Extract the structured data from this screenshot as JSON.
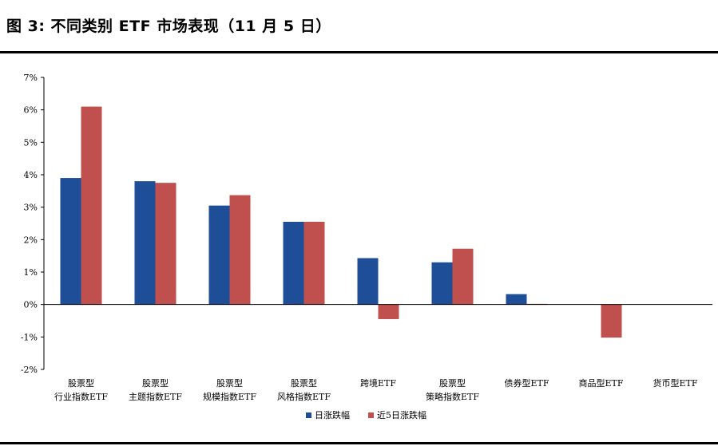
{
  "figure": {
    "title": "图 3:  不同类别 ETF 市场表现（11 月 5 日）"
  },
  "chart_data": {
    "type": "bar",
    "categories": [
      [
        "股票型",
        "行业指数ETF"
      ],
      [
        "股票型",
        "主题指数ETF"
      ],
      [
        "股票型",
        "规模指数ETF"
      ],
      [
        "股票型",
        "风格指数ETF"
      ],
      [
        "跨境ETF"
      ],
      [
        "股票型",
        "策略指数ETF"
      ],
      [
        "债券型ETF"
      ],
      [
        "商品型ETF"
      ],
      [
        "货币型ETF"
      ]
    ],
    "series": [
      {
        "name": "日涨跌幅",
        "color": "#1F4E99",
        "values": [
          3.9,
          3.8,
          3.05,
          2.55,
          1.43,
          1.3,
          0.32,
          0.0,
          0.0
        ]
      },
      {
        "name": "近5日涨跌幅",
        "color": "#C0504D",
        "values": [
          6.1,
          3.75,
          3.37,
          2.55,
          -0.45,
          1.72,
          0.02,
          -1.02,
          0.0
        ]
      }
    ],
    "ylim": [
      -2,
      7
    ],
    "yticks": [
      -2,
      -1,
      0,
      1,
      2,
      3,
      4,
      5,
      6,
      7
    ],
    "ytick_labels": [
      "-2%",
      "-1%",
      "0%",
      "1%",
      "2%",
      "3%",
      "4%",
      "5%",
      "6%",
      "7%"
    ],
    "xlabel": "",
    "ylabel": "",
    "legend_position": "bottom-center",
    "grid": false
  }
}
